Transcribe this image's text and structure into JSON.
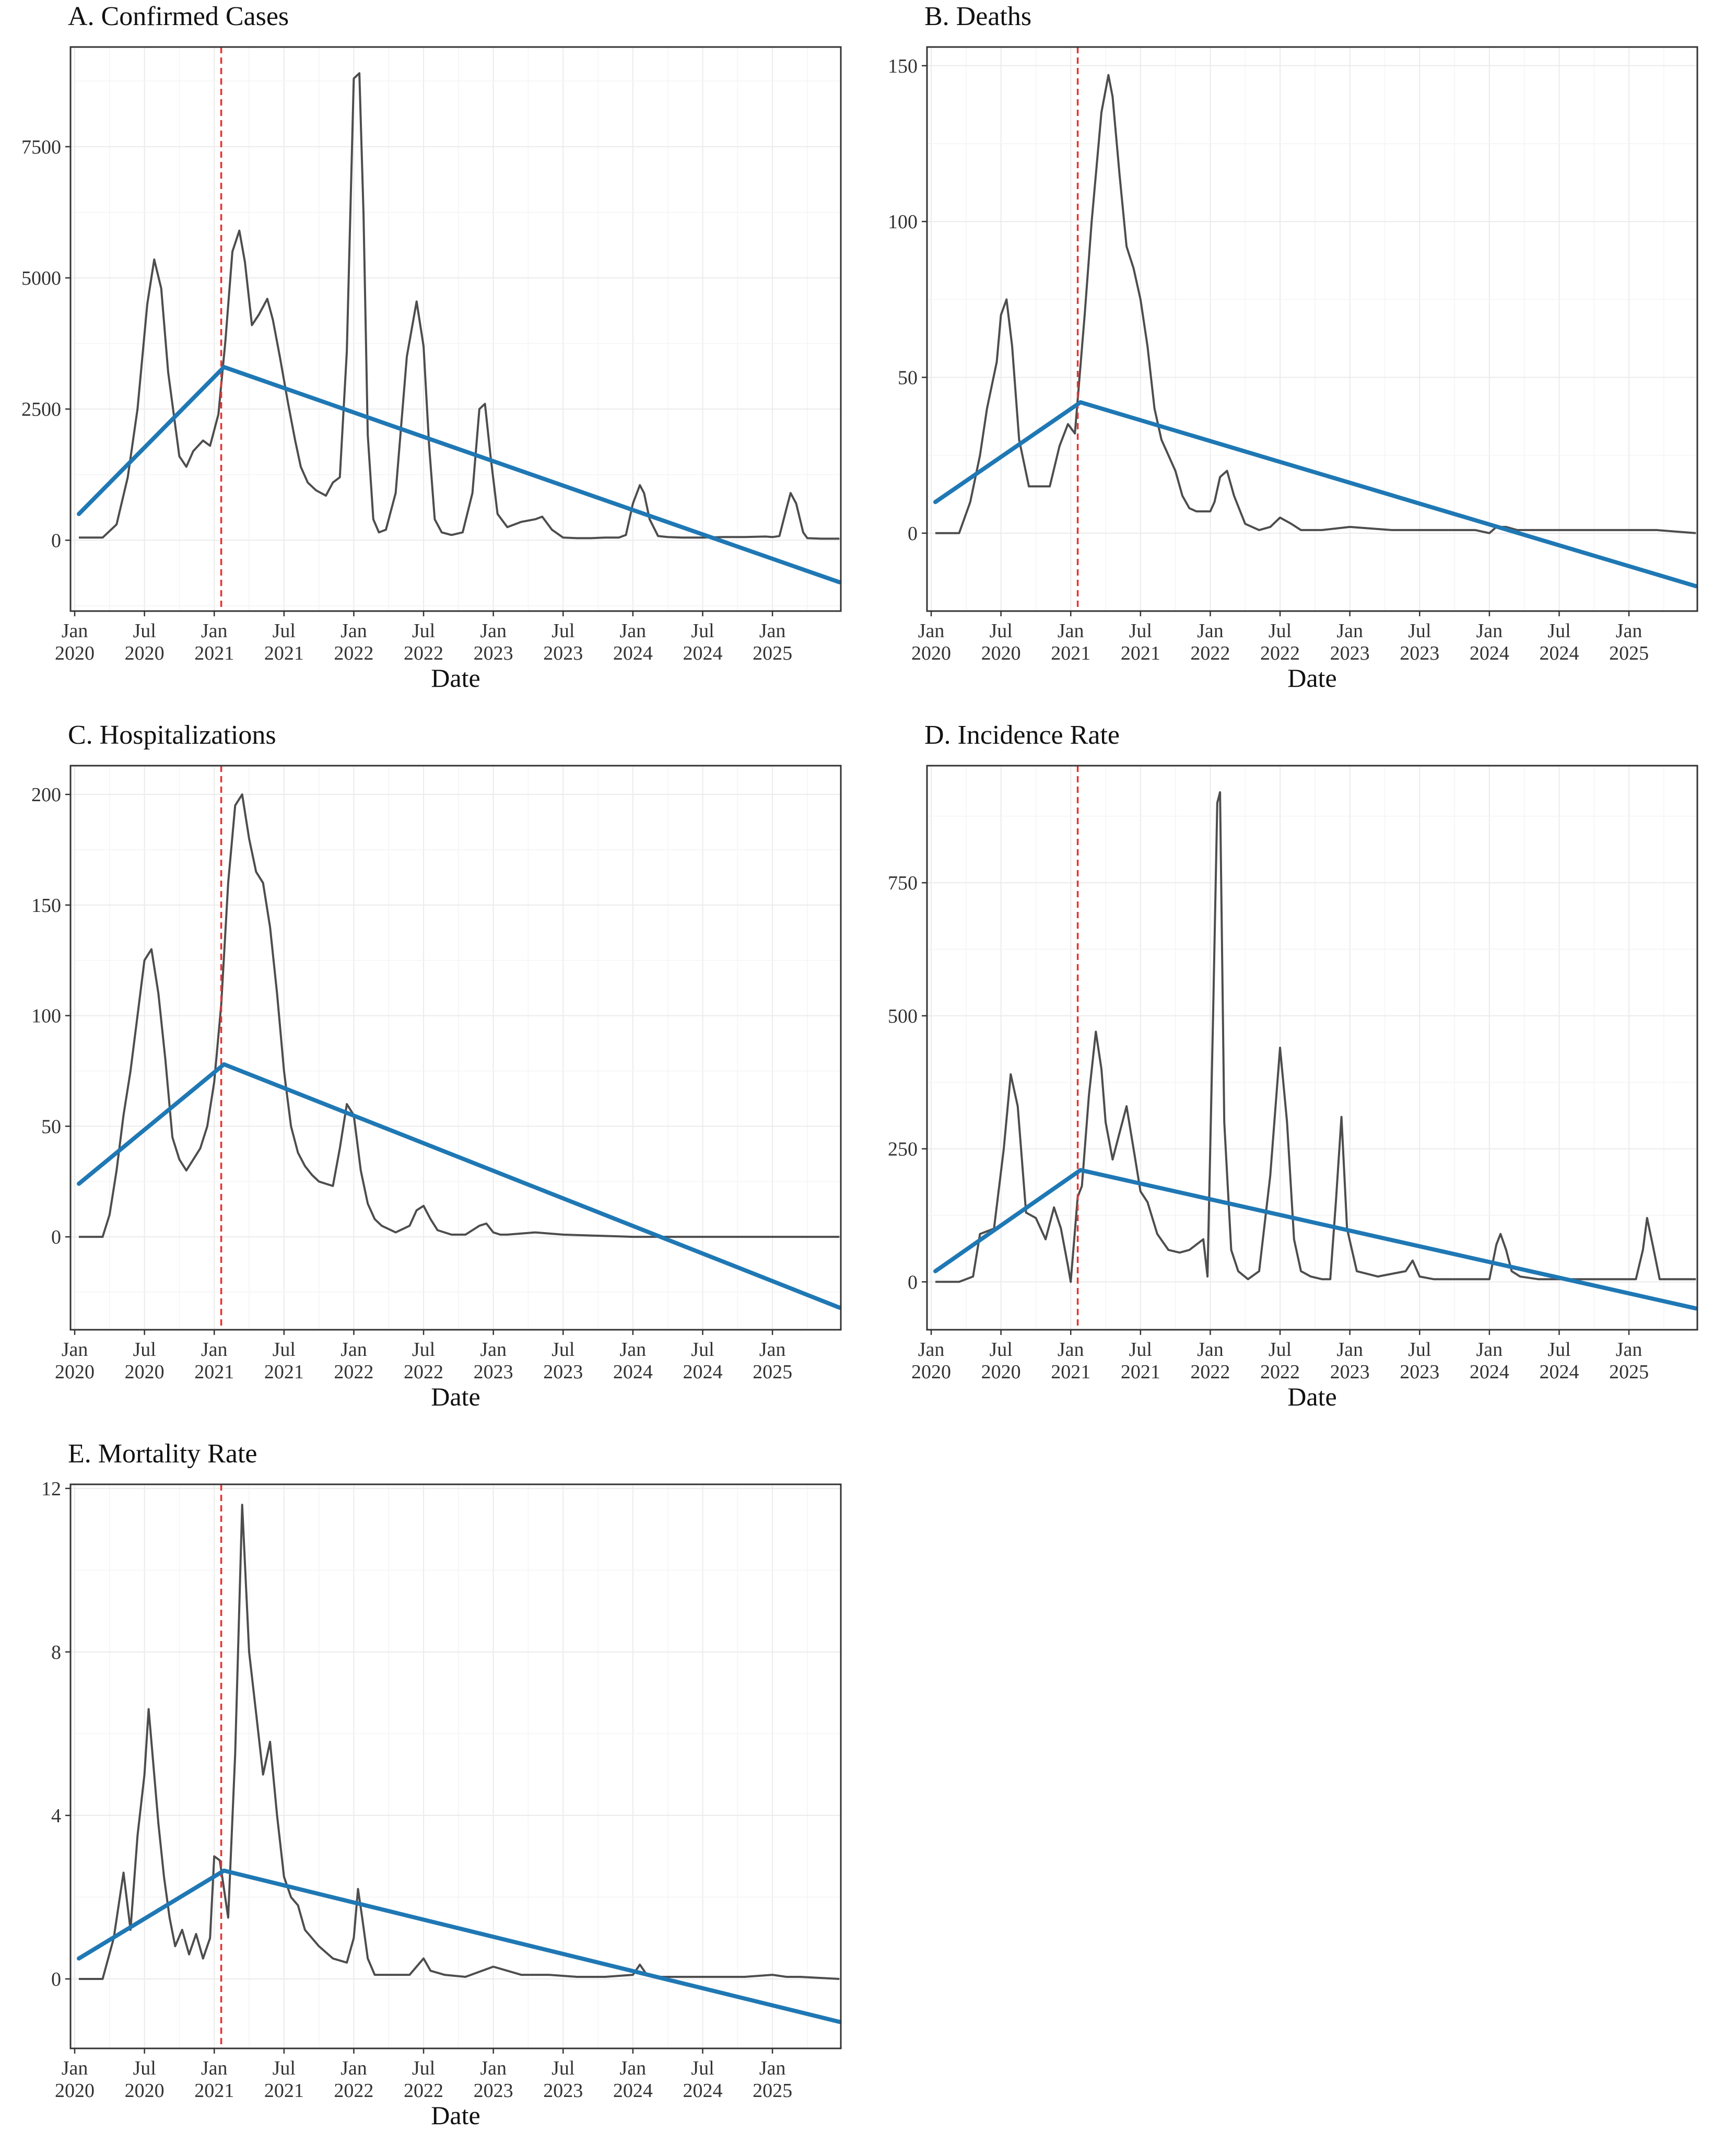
{
  "figure": {
    "x_tick_labels": [
      [
        "Jan",
        "2020"
      ],
      [
        "Jul",
        "2020"
      ],
      [
        "Jan",
        "2021"
      ],
      [
        "Jul",
        "2021"
      ],
      [
        "Jan",
        "2022"
      ],
      [
        "Jul",
        "2022"
      ],
      [
        "Jan",
        "2023"
      ],
      [
        "Jul",
        "2023"
      ],
      [
        "Jan",
        "2024"
      ],
      [
        "Jul",
        "2024"
      ],
      [
        "Jan",
        "2025"
      ]
    ],
    "x_tick_dates": [
      2020.0,
      2020.5,
      2021.0,
      2021.5,
      2022.0,
      2022.5,
      2023.0,
      2023.5,
      2024.0,
      2024.5,
      2025.0
    ],
    "colors": {
      "observed": "#4d4d4d",
      "trend": "#1f78b4",
      "breakpoint": "#e8322e",
      "grid": "#ebebeb",
      "border": "#333333"
    }
  },
  "chart_data": [
    {
      "id": "A",
      "type": "line",
      "title": "A. Confirmed Cases",
      "xlabel": "Date",
      "ylabel": "",
      "xlim": [
        2019.97,
        2025.49
      ],
      "ylim": [
        -1350,
        9400
      ],
      "yticks": [
        0,
        2500,
        5000,
        7500
      ],
      "breakpoint": 2021.05,
      "trend": {
        "x": [
          2020.03,
          2021.07,
          2025.48
        ],
        "y": [
          500,
          3300,
          -800
        ]
      },
      "series": [
        {
          "name": "Observed",
          "x": [
            2020.03,
            2020.2,
            2020.3,
            2020.38,
            2020.45,
            2020.52,
            2020.57,
            2020.62,
            2020.67,
            2020.75,
            2020.8,
            2020.85,
            2020.92,
            2020.97,
            2021.03,
            2021.08,
            2021.13,
            2021.18,
            2021.22,
            2021.27,
            2021.32,
            2021.38,
            2021.42,
            2021.47,
            2021.53,
            2021.58,
            2021.62,
            2021.67,
            2021.73,
            2021.8,
            2021.85,
            2021.9,
            2021.95,
            2022.0,
            2022.04,
            2022.07,
            2022.1,
            2022.14,
            2022.18,
            2022.23,
            2022.3,
            2022.38,
            2022.45,
            2022.5,
            2022.54,
            2022.58,
            2022.63,
            2022.7,
            2022.78,
            2022.85,
            2022.9,
            2022.94,
            2022.98,
            2023.03,
            2023.1,
            2023.2,
            2023.3,
            2023.35,
            2023.42,
            2023.5,
            2023.6,
            2023.7,
            2023.8,
            2023.9,
            2023.95,
            2024.0,
            2024.05,
            2024.08,
            2024.12,
            2024.18,
            2024.25,
            2024.35,
            2024.5,
            2024.65,
            2024.8,
            2024.95,
            2025.0,
            2025.05,
            2025.1,
            2025.13,
            2025.17,
            2025.22,
            2025.25,
            2025.35,
            2025.48
          ],
          "y": [
            50,
            50,
            300,
            1200,
            2500,
            4500,
            5350,
            4800,
            3200,
            1600,
            1400,
            1700,
            1900,
            1800,
            2400,
            3800,
            5500,
            5900,
            5300,
            4100,
            4300,
            4600,
            4200,
            3500,
            2600,
            1900,
            1400,
            1100,
            950,
            850,
            1100,
            1200,
            3600,
            8800,
            8900,
            6200,
            2000,
            400,
            150,
            200,
            900,
            3500,
            4550,
            3700,
            1800,
            400,
            150,
            100,
            150,
            900,
            2500,
            2600,
            1600,
            500,
            250,
            350,
            400,
            450,
            200,
            50,
            40,
            40,
            50,
            50,
            100,
            700,
            1050,
            900,
            400,
            80,
            60,
            50,
            50,
            60,
            60,
            70,
            60,
            80,
            600,
            900,
            700,
            150,
            40,
            30,
            30
          ]
        }
      ]
    },
    {
      "id": "B",
      "type": "line",
      "title": "B. Deaths",
      "xlabel": "Date",
      "ylabel": "",
      "xlim": [
        2019.97,
        2025.49
      ],
      "ylim": [
        -25,
        156
      ],
      "yticks": [
        0,
        50,
        100,
        150
      ],
      "breakpoint": 2021.05,
      "trend": {
        "x": [
          2020.03,
          2021.07,
          2025.48
        ],
        "y": [
          10,
          42,
          -17
        ]
      },
      "series": [
        {
          "name": "Observed",
          "x": [
            2020.03,
            2020.2,
            2020.28,
            2020.35,
            2020.4,
            2020.47,
            2020.5,
            2020.54,
            2020.58,
            2020.63,
            2020.7,
            2020.78,
            2020.85,
            2020.92,
            2020.98,
            2021.03,
            2021.1,
            2021.15,
            2021.22,
            2021.27,
            2021.3,
            2021.35,
            2021.4,
            2021.45,
            2021.5,
            2021.55,
            2021.6,
            2021.65,
            2021.7,
            2021.75,
            2021.8,
            2021.85,
            2021.9,
            2022.0,
            2022.03,
            2022.07,
            2022.12,
            2022.17,
            2022.25,
            2022.35,
            2022.43,
            2022.5,
            2022.58,
            2022.65,
            2022.8,
            2023.0,
            2023.3,
            2023.5,
            2023.7,
            2023.9,
            2024.0,
            2024.05,
            2024.12,
            2024.2,
            2024.4,
            2024.6,
            2024.8,
            2025.0,
            2025.1,
            2025.2,
            2025.48
          ],
          "y": [
            0,
            0,
            10,
            25,
            40,
            55,
            70,
            75,
            60,
            30,
            15,
            15,
            15,
            28,
            35,
            32,
            70,
            100,
            135,
            147,
            140,
            115,
            92,
            85,
            75,
            60,
            40,
            30,
            25,
            20,
            12,
            8,
            7,
            7,
            10,
            18,
            20,
            12,
            3,
            1,
            2,
            5,
            3,
            1,
            1,
            2,
            1,
            1,
            1,
            1,
            0,
            2,
            2,
            1,
            1,
            1,
            1,
            1,
            1,
            1,
            0
          ]
        }
      ]
    },
    {
      "id": "C",
      "type": "line",
      "title": "C. Hospitalizations",
      "xlabel": "Date",
      "ylabel": "",
      "xlim": [
        2019.97,
        2025.49
      ],
      "ylim": [
        -42,
        213
      ],
      "yticks": [
        0,
        50,
        100,
        150,
        200
      ],
      "breakpoint": 2021.05,
      "trend": {
        "x": [
          2020.03,
          2021.07,
          2025.48
        ],
        "y": [
          24,
          78,
          -32
        ]
      },
      "series": [
        {
          "name": "Observed",
          "x": [
            2020.03,
            2020.2,
            2020.25,
            2020.3,
            2020.35,
            2020.4,
            2020.45,
            2020.5,
            2020.55,
            2020.6,
            2020.65,
            2020.7,
            2020.75,
            2020.8,
            2020.85,
            2020.9,
            2020.95,
            2021.0,
            2021.05,
            2021.1,
            2021.15,
            2021.2,
            2021.25,
            2021.3,
            2021.35,
            2021.4,
            2021.45,
            2021.5,
            2021.55,
            2021.6,
            2021.65,
            2021.7,
            2021.75,
            2021.8,
            2021.85,
            2021.9,
            2021.95,
            2022.0,
            2022.05,
            2022.1,
            2022.15,
            2022.2,
            2022.3,
            2022.4,
            2022.45,
            2022.5,
            2022.55,
            2022.6,
            2022.7,
            2022.8,
            2022.9,
            2022.95,
            2023.0,
            2023.05,
            2023.1,
            2023.3,
            2023.5,
            2024.0,
            2024.5,
            2025.0,
            2025.48
          ],
          "y": [
            0,
            0,
            10,
            30,
            55,
            75,
            100,
            125,
            130,
            110,
            80,
            45,
            35,
            30,
            35,
            40,
            50,
            70,
            105,
            160,
            195,
            200,
            180,
            165,
            160,
            140,
            110,
            75,
            50,
            38,
            32,
            28,
            25,
            24,
            23,
            40,
            60,
            55,
            30,
            15,
            8,
            5,
            2,
            5,
            12,
            14,
            8,
            3,
            1,
            1,
            5,
            6,
            2,
            1,
            1,
            2,
            1,
            0,
            0,
            0,
            0
          ]
        }
      ]
    },
    {
      "id": "D",
      "type": "line",
      "title": "D. Incidence Rate",
      "xlabel": "Date",
      "ylabel": "",
      "xlim": [
        2019.97,
        2025.49
      ],
      "ylim": [
        -90,
        970
      ],
      "yticks": [
        0,
        250,
        500,
        750
      ],
      "breakpoint": 2021.05,
      "trend": {
        "x": [
          2020.03,
          2021.07,
          2025.48
        ],
        "y": [
          20,
          210,
          -50
        ]
      },
      "series": [
        {
          "name": "Observed",
          "x": [
            2020.03,
            2020.2,
            2020.3,
            2020.35,
            2020.45,
            2020.52,
            2020.57,
            2020.62,
            2020.68,
            2020.75,
            2020.82,
            2020.88,
            2020.93,
            2020.98,
            2021.0,
            2021.05,
            2021.08,
            2021.13,
            2021.18,
            2021.22,
            2021.25,
            2021.3,
            2021.35,
            2021.4,
            2021.45,
            2021.5,
            2021.55,
            2021.62,
            2021.7,
            2021.78,
            2021.85,
            2021.9,
            2021.95,
            2021.98,
            2022.02,
            2022.05,
            2022.07,
            2022.1,
            2022.15,
            2022.2,
            2022.27,
            2022.35,
            2022.43,
            2022.5,
            2022.55,
            2022.6,
            2022.65,
            2022.72,
            2022.8,
            2022.86,
            2022.9,
            2022.94,
            2022.98,
            2023.05,
            2023.2,
            2023.3,
            2023.4,
            2023.45,
            2023.5,
            2023.6,
            2023.8,
            2024.0,
            2024.05,
            2024.08,
            2024.12,
            2024.16,
            2024.22,
            2024.35,
            2024.5,
            2024.7,
            2024.9,
            2025.05,
            2025.1,
            2025.13,
            2025.17,
            2025.22,
            2025.3,
            2025.48
          ],
          "y": [
            0,
            0,
            10,
            90,
            100,
            250,
            390,
            330,
            130,
            120,
            80,
            140,
            100,
            30,
            0,
            160,
            180,
            350,
            470,
            400,
            300,
            230,
            280,
            330,
            250,
            170,
            150,
            90,
            60,
            55,
            60,
            70,
            80,
            10,
            500,
            900,
            920,
            300,
            60,
            20,
            5,
            20,
            200,
            440,
            300,
            80,
            20,
            10,
            5,
            5,
            150,
            310,
            100,
            20,
            10,
            15,
            20,
            40,
            10,
            5,
            5,
            5,
            70,
            90,
            60,
            20,
            10,
            5,
            5,
            5,
            5,
            5,
            60,
            120,
            70,
            5,
            5,
            5
          ]
        }
      ]
    },
    {
      "id": "E",
      "type": "line",
      "title": "E. Mortality Rate",
      "xlabel": "Date",
      "ylabel": "",
      "xlim": [
        2019.97,
        2025.49
      ],
      "ylim": [
        -1.7,
        12.1
      ],
      "yticks": [
        0,
        4,
        8,
        12
      ],
      "breakpoint": 2021.05,
      "trend": {
        "x": [
          2020.03,
          2021.07,
          2025.48
        ],
        "y": [
          0.5,
          2.65,
          -1.05
        ]
      },
      "series": [
        {
          "name": "Observed",
          "x": [
            2020.03,
            2020.2,
            2020.28,
            2020.35,
            2020.4,
            2020.45,
            2020.5,
            2020.53,
            2020.57,
            2020.6,
            2020.64,
            2020.68,
            2020.72,
            2020.77,
            2020.82,
            2020.87,
            2020.92,
            2020.97,
            2021.0,
            2021.04,
            2021.1,
            2021.15,
            2021.2,
            2021.25,
            2021.3,
            2021.35,
            2021.4,
            2021.45,
            2021.5,
            2021.55,
            2021.6,
            2021.65,
            2021.75,
            2021.85,
            2021.95,
            2022.0,
            2022.03,
            2022.06,
            2022.1,
            2022.15,
            2022.25,
            2022.4,
            2022.5,
            2022.55,
            2022.65,
            2022.8,
            2023.0,
            2023.2,
            2023.4,
            2023.6,
            2023.8,
            2024.0,
            2024.05,
            2024.1,
            2024.2,
            2024.4,
            2024.6,
            2024.8,
            2025.0,
            2025.1,
            2025.2,
            2025.48
          ],
          "y": [
            0,
            0,
            1.0,
            2.6,
            1.2,
            3.5,
            5.0,
            6.6,
            5.0,
            3.8,
            2.5,
            1.5,
            0.8,
            1.2,
            0.6,
            1.1,
            0.5,
            1.0,
            3.0,
            2.9,
            1.5,
            5.5,
            11.6,
            8.0,
            6.5,
            5.0,
            5.8,
            4.0,
            2.5,
            2.0,
            1.8,
            1.2,
            0.8,
            0.5,
            0.4,
            1.0,
            2.2,
            1.5,
            0.5,
            0.1,
            0.1,
            0.1,
            0.5,
            0.2,
            0.1,
            0.05,
            0.3,
            0.1,
            0.1,
            0.05,
            0.05,
            0.1,
            0.35,
            0.1,
            0.05,
            0.05,
            0.05,
            0.05,
            0.1,
            0.05,
            0.05,
            0
          ]
        }
      ]
    }
  ]
}
